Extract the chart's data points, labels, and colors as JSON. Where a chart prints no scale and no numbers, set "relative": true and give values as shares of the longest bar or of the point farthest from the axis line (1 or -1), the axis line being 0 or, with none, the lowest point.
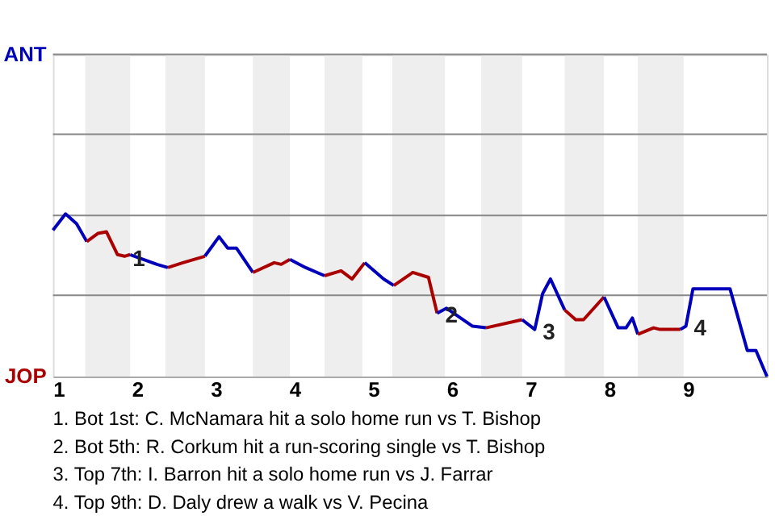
{
  "chart_data": {
    "type": "line",
    "relative": true,
    "xlim": [
      0.93,
      10
    ],
    "xticks": [
      1,
      2,
      3,
      4,
      5,
      6,
      7,
      8,
      9
    ],
    "line_style": "solid",
    "marker": "none",
    "series": [
      {
        "color": "#0000bb",
        "x": [
          0.93,
          1.09,
          1.23,
          1.36
        ],
        "values": [
          0.9,
          1,
          0.94,
          0.83
        ]
      },
      {
        "color": "#aa0000",
        "x": [
          1.36,
          1.5,
          1.61,
          1.75,
          1.84,
          1.91
        ],
        "values": [
          0.83,
          0.88,
          0.89,
          0.75,
          0.74,
          0.75
        ]
      },
      {
        "color": "#0000bb",
        "x": [
          1.91,
          2.25,
          2.39
        ],
        "values": [
          0.75,
          0.69,
          0.67
        ]
      },
      {
        "color": "#aa0000",
        "x": [
          2.39,
          2.58,
          2.86
        ],
        "values": [
          0.67,
          0.7,
          0.74
        ]
      },
      {
        "color": "#0000bb",
        "x": [
          2.86,
          3.04,
          3.15,
          3.26,
          3.47
        ],
        "values": [
          0.74,
          0.86,
          0.79,
          0.79,
          0.64
        ]
      },
      {
        "color": "#aa0000",
        "x": [
          3.47,
          3.74,
          3.83,
          3.94
        ],
        "values": [
          0.64,
          0.7,
          0.69,
          0.72
        ]
      },
      {
        "color": "#0000bb",
        "x": [
          3.94,
          4.14,
          4.38
        ],
        "values": [
          0.72,
          0.67,
          0.62
        ]
      },
      {
        "color": "#aa0000",
        "x": [
          4.38,
          4.59,
          4.73,
          4.89
        ],
        "values": [
          0.62,
          0.65,
          0.6,
          0.7
        ]
      },
      {
        "color": "#0000bb",
        "x": [
          4.89,
          5.13,
          5.26
        ],
        "values": [
          0.7,
          0.6,
          0.56
        ]
      },
      {
        "color": "#aa0000",
        "x": [
          5.26,
          5.5,
          5.7,
          5.81
        ],
        "values": [
          0.56,
          0.64,
          0.61,
          0.39
        ]
      },
      {
        "color": "#0000bb",
        "x": [
          5.81,
          5.93,
          6.26,
          6.43
        ],
        "values": [
          0.39,
          0.42,
          0.31,
          0.3
        ]
      },
      {
        "color": "#aa0000",
        "x": [
          6.43,
          6.89
        ],
        "values": [
          0.3,
          0.35
        ]
      },
      {
        "color": "#0000bb",
        "x": [
          6.89,
          7.05,
          7.15,
          7.25,
          7.43
        ],
        "values": [
          0.35,
          0.29,
          0.51,
          0.6,
          0.41
        ]
      },
      {
        "color": "#aa0000",
        "x": [
          7.43,
          7.57,
          7.67,
          7.93
        ],
        "values": [
          0.41,
          0.35,
          0.35,
          0.49
        ]
      },
      {
        "color": "#0000bb",
        "x": [
          7.93,
          8.11,
          8.21,
          8.29,
          8.36
        ],
        "values": [
          0.49,
          0.3,
          0.3,
          0.36,
          0.26
        ]
      },
      {
        "color": "#aa0000",
        "x": [
          8.36,
          8.56,
          8.64,
          8.9
        ],
        "values": [
          0.26,
          0.3,
          0.29,
          0.29
        ]
      },
      {
        "color": "#0000bb",
        "x": [
          8.9,
          8.97,
          9.06,
          9.53,
          9.75,
          9.86,
          10
        ],
        "values": [
          0.29,
          0.31,
          0.54,
          0.54,
          0.16,
          0.16,
          0
        ]
      }
    ],
    "ref_lines": [
      {
        "axis": "y",
        "value": 0.5,
        "label": null,
        "color": "#888888"
      },
      {
        "axis": "y",
        "value": 0.99,
        "label": null,
        "color": "#888888"
      },
      {
        "axis": "y",
        "value": 1.49,
        "label": null,
        "color": "#888888"
      },
      {
        "axis": "y",
        "value": 1.98,
        "label": null,
        "color": "#888888"
      }
    ],
    "bands": [
      {
        "axis": "x",
        "from": 1.34,
        "to": 1.91,
        "label": null,
        "color": "#eeeeee"
      },
      {
        "axis": "x",
        "from": 2.36,
        "to": 2.86,
        "label": null,
        "color": "#eeeeee"
      },
      {
        "axis": "x",
        "from": 3.47,
        "to": 3.94,
        "label": null,
        "color": "#eeeeee"
      },
      {
        "axis": "x",
        "from": 4.38,
        "to": 4.86,
        "label": null,
        "color": "#eeeeee"
      },
      {
        "axis": "x",
        "from": 5.24,
        "to": 5.91,
        "label": null,
        "color": "#eeeeee"
      },
      {
        "axis": "x",
        "from": 6.37,
        "to": 6.89,
        "label": null,
        "color": "#eeeeee"
      },
      {
        "axis": "x",
        "from": 7.43,
        "to": 7.93,
        "label": null,
        "color": "#eeeeee"
      },
      {
        "axis": "x",
        "from": 8.36,
        "to": 8.94,
        "label": null,
        "color": "#eeeeee"
      }
    ],
    "annotations": [
      "ANT",
      "JOP",
      {
        "text": "1",
        "x": 1.84,
        "y": 0.74
      },
      {
        "text": "2",
        "x": 5.81,
        "y": 0.39
      },
      {
        "text": "3",
        "x": 7.05,
        "y": 0.29
      },
      {
        "text": "4",
        "x": 8.97,
        "y": 0.31
      },
      "1. Bot 1st: C. McNamara hit a solo home run vs T. Bishop",
      "2. Bot 5th: R. Corkum hit a run-scoring single vs T. Bishop",
      "3. Top 7th: I. Barron hit a solo home run vs J. Farrar",
      "4. Top 9th: D. Daly drew a walk vs V. Pecina"
    ]
  }
}
